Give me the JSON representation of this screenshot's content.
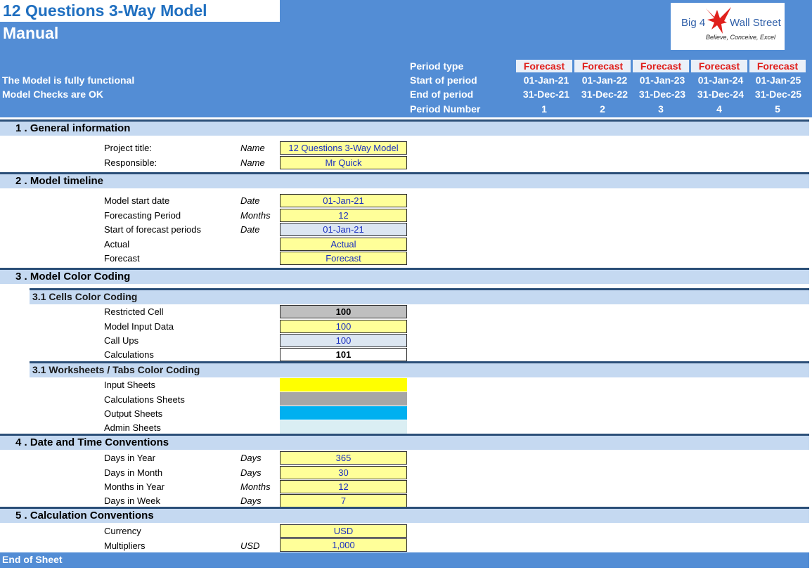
{
  "header": {
    "title": "12 Questions 3-Way Model",
    "subtitle": "Manual",
    "status_1": "The Model is fully functional",
    "status_2": "Model Checks are OK",
    "logo": {
      "left_text": "Big 4",
      "right_text": "Wall Street",
      "tagline": "Believe, Conceive, Excel",
      "icon": "eagle-icon",
      "color": "#e0201c"
    },
    "row_labels": {
      "period_type": "Period type",
      "start": "Start of period",
      "end": "End of period",
      "number": "Period Number"
    },
    "periods": [
      {
        "type": "Forecast",
        "start": "01-Jan-21",
        "end": "31-Dec-21",
        "number": "1"
      },
      {
        "type": "Forecast",
        "start": "01-Jan-22",
        "end": "31-Dec-22",
        "number": "2"
      },
      {
        "type": "Forecast",
        "start": "01-Jan-23",
        "end": "31-Dec-23",
        "number": "3"
      },
      {
        "type": "Forecast",
        "start": "01-Jan-24",
        "end": "31-Dec-24",
        "number": "4"
      },
      {
        "type": "Forecast",
        "start": "01-Jan-25",
        "end": "31-Dec-25",
        "number": "5"
      }
    ]
  },
  "sections": {
    "general": {
      "title": "1 . General information",
      "rows": [
        {
          "label": "Project title:",
          "unit": "Name",
          "value": "12 Questions 3-Way Model"
        },
        {
          "label": "Responsible:",
          "unit": "Name",
          "value": "Mr Quick"
        }
      ]
    },
    "timeline": {
      "title": "2 . Model timeline",
      "rows": [
        {
          "label": "Model start date",
          "unit": "Date",
          "value": "01-Jan-21"
        },
        {
          "label": "Forecasting Period",
          "unit": "Months",
          "value": "12"
        },
        {
          "label": "Start of forecast periods",
          "unit": "Date",
          "value": "01-Jan-21"
        },
        {
          "label": "Actual",
          "unit": "",
          "value": "Actual"
        },
        {
          "label": "Forecast",
          "unit": "",
          "value": "Forecast"
        }
      ]
    },
    "color": {
      "title": "3 . Model Color Coding",
      "cells_title": "3.1 Cells Color Coding",
      "cells": [
        {
          "label": "Restricted Cell",
          "value": "100"
        },
        {
          "label": "Model Input Data",
          "value": "100"
        },
        {
          "label": "Call Ups",
          "value": "100"
        },
        {
          "label": "Calculations",
          "value": "101"
        }
      ],
      "tabs_title": "3.1 Worksheets / Tabs Color Coding",
      "tabs": [
        {
          "label": "Input Sheets",
          "color": "#ffff00"
        },
        {
          "label": "Calculations Sheets",
          "color": "#a6a6a6"
        },
        {
          "label": "Output Sheets",
          "color": "#00b0f0"
        },
        {
          "label": "Admin Sheets",
          "color": "#daeef3"
        }
      ]
    },
    "datetime": {
      "title": "4 . Date and Time Conventions",
      "rows": [
        {
          "label": "Days in Year",
          "unit": "Days",
          "value": "365"
        },
        {
          "label": "Days in Month",
          "unit": "Days",
          "value": "30"
        },
        {
          "label": "Months in Year",
          "unit": "Months",
          "value": "12"
        },
        {
          "label": "Days in Week",
          "unit": "Days",
          "value": "7"
        }
      ]
    },
    "calc": {
      "title": "5 . Calculation Conventions",
      "rows": [
        {
          "label": "Currency",
          "unit": "",
          "value": "USD"
        },
        {
          "label": "Multipliers",
          "unit": "USD",
          "value": "1,000"
        }
      ]
    }
  },
  "footer": "End of Sheet",
  "colors": {
    "header_bg": "#538dd5",
    "section_bg": "#c5d9f1",
    "input_cell": "#ffff99",
    "callup_cell": "#dce6f1",
    "restricted_cell": "#bfbfbf",
    "forecast_text": "#e0201c"
  }
}
